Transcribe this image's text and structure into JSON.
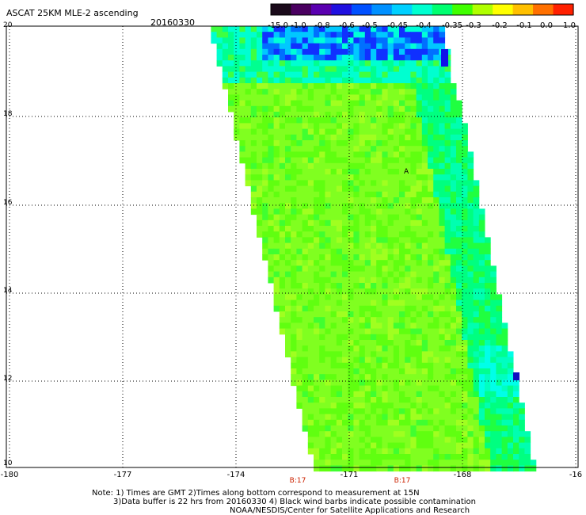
{
  "title": "ASCAT 25KM MLE-2 ascending",
  "date": "20160330",
  "colorbar": {
    "labels": [
      "-15.0",
      "-1.0",
      "-0.8",
      "-0.6",
      "-0.5",
      "-0.45",
      "-0.4",
      "-0.35",
      "-0.3",
      "-0.2",
      "-0.1",
      "0.0",
      "1.0"
    ],
    "colors": [
      "#1a0a1a",
      "#4a0060",
      "#5a00b0",
      "#2010e0",
      "#0050ff",
      "#0090ff",
      "#00d0ff",
      "#00ffd0",
      "#00ff70",
      "#40ff00",
      "#b0ff00",
      "#ffff00",
      "#ffc000",
      "#ff7000",
      "#ff2000"
    ]
  },
  "lat_labels": [
    "20",
    "18",
    "16",
    "14",
    "12",
    "10"
  ],
  "lon_labels": [
    "-180",
    "-177",
    "-174",
    "-171",
    "-168",
    "-16"
  ],
  "time_labels": [
    "B:17",
    "B:17"
  ],
  "notes": [
    "Note: 1) Times are GMT 2)Times along bottom correspond to measurement at 15N",
    "3)Data buffer is 22 hrs from 20160330 4) Black wind barbs indicate possible contamination",
    "NOAA/NESDIS/Center for Satellite Applications and Research"
  ],
  "marker_label": "A"
}
